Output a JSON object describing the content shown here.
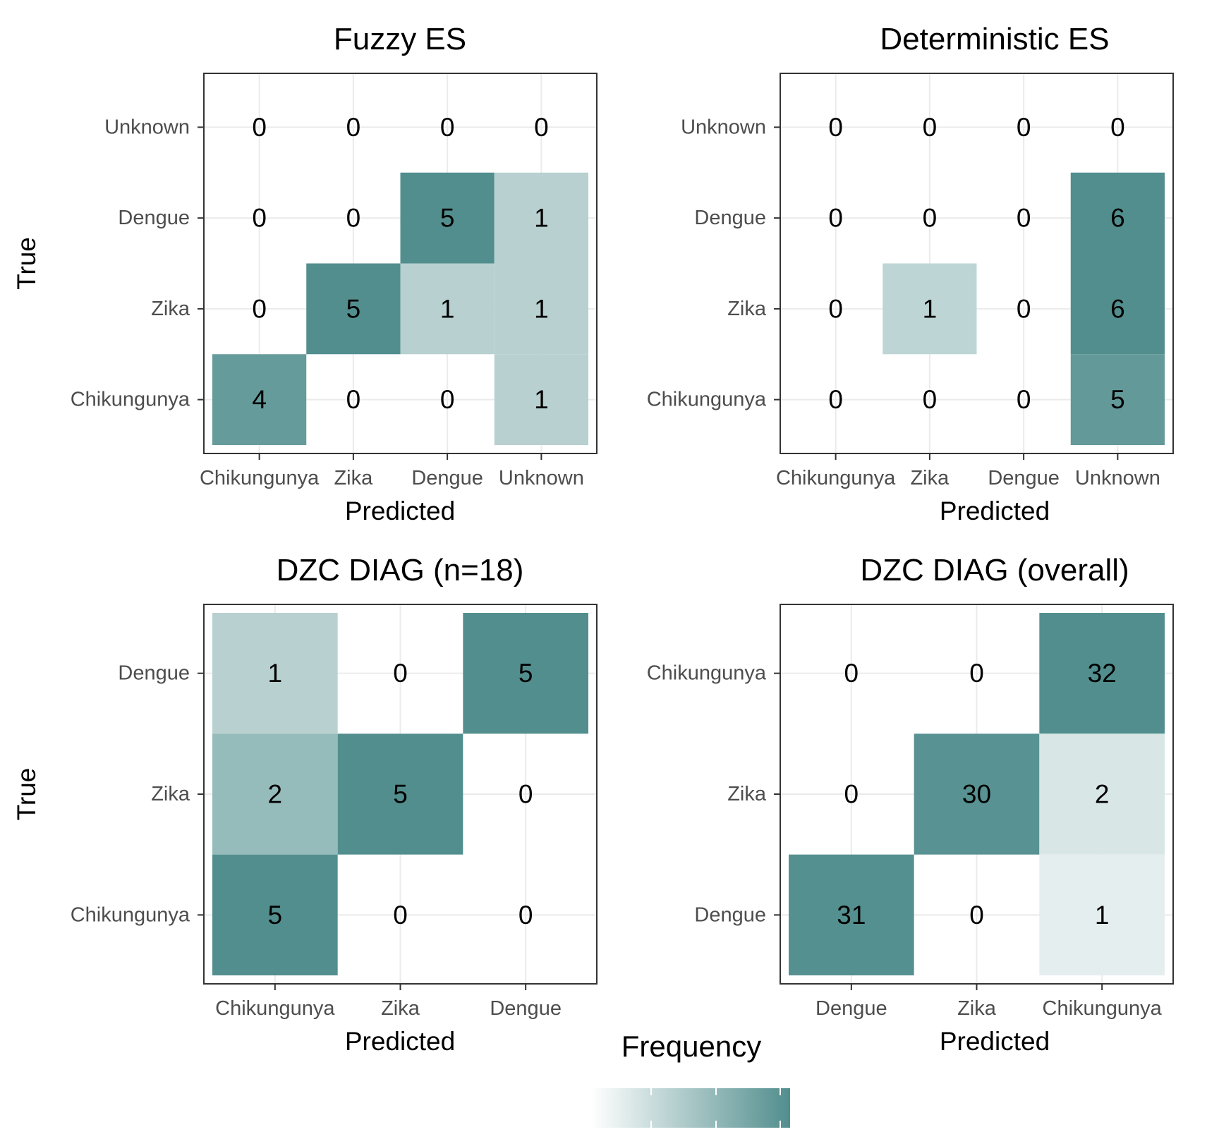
{
  "colors": {
    "high": "#528e8e",
    "low": "#ffffff",
    "grid": "#ebebeb",
    "border": "#333333",
    "tick_text": "#4d4d4d"
  },
  "legend": {
    "title": "Frequency",
    "position": "bottom",
    "gradient": [
      "#ffffff",
      "#528e8e"
    ]
  },
  "chart_data": [
    {
      "type": "heatmap",
      "title": "Fuzzy ES",
      "xlabel": "Predicted",
      "ylabel": "True",
      "x_categories": [
        "Chikungunya",
        "Zika",
        "Dengue",
        "Unknown"
      ],
      "y_categories": [
        "Chikungunya",
        "Zika",
        "Dengue",
        "Unknown"
      ],
      "cells": [
        {
          "x": "Chikungunya",
          "y": "Unknown",
          "value": 0
        },
        {
          "x": "Zika",
          "y": "Unknown",
          "value": 0
        },
        {
          "x": "Dengue",
          "y": "Unknown",
          "value": 0
        },
        {
          "x": "Unknown",
          "y": "Unknown",
          "value": 0
        },
        {
          "x": "Chikungunya",
          "y": "Dengue",
          "value": 0
        },
        {
          "x": "Zika",
          "y": "Dengue",
          "value": 0
        },
        {
          "x": "Dengue",
          "y": "Dengue",
          "value": 5
        },
        {
          "x": "Unknown",
          "y": "Dengue",
          "value": 1
        },
        {
          "x": "Chikungunya",
          "y": "Zika",
          "value": 0
        },
        {
          "x": "Zika",
          "y": "Zika",
          "value": 5
        },
        {
          "x": "Dengue",
          "y": "Zika",
          "value": 1
        },
        {
          "x": "Unknown",
          "y": "Zika",
          "value": 1
        },
        {
          "x": "Chikungunya",
          "y": "Chikungunya",
          "value": 4
        },
        {
          "x": "Zika",
          "y": "Chikungunya",
          "value": 0
        },
        {
          "x": "Dengue",
          "y": "Chikungunya",
          "value": 0
        },
        {
          "x": "Unknown",
          "y": "Chikungunya",
          "value": 1
        }
      ],
      "grid": true
    },
    {
      "type": "heatmap",
      "title": "Deterministic ES",
      "xlabel": "Predicted",
      "ylabel": "",
      "x_categories": [
        "Chikungunya",
        "Zika",
        "Dengue",
        "Unknown"
      ],
      "y_categories": [
        "Chikungunya",
        "Zika",
        "Dengue",
        "Unknown"
      ],
      "cells": [
        {
          "x": "Chikungunya",
          "y": "Unknown",
          "value": 0
        },
        {
          "x": "Zika",
          "y": "Unknown",
          "value": 0
        },
        {
          "x": "Dengue",
          "y": "Unknown",
          "value": 0
        },
        {
          "x": "Unknown",
          "y": "Unknown",
          "value": 0
        },
        {
          "x": "Chikungunya",
          "y": "Dengue",
          "value": 0
        },
        {
          "x": "Zika",
          "y": "Dengue",
          "value": 0
        },
        {
          "x": "Dengue",
          "y": "Dengue",
          "value": 0
        },
        {
          "x": "Unknown",
          "y": "Dengue",
          "value": 6
        },
        {
          "x": "Chikungunya",
          "y": "Zika",
          "value": 0
        },
        {
          "x": "Zika",
          "y": "Zika",
          "value": 1
        },
        {
          "x": "Dengue",
          "y": "Zika",
          "value": 0
        },
        {
          "x": "Unknown",
          "y": "Zika",
          "value": 6
        },
        {
          "x": "Chikungunya",
          "y": "Chikungunya",
          "value": 0
        },
        {
          "x": "Zika",
          "y": "Chikungunya",
          "value": 0
        },
        {
          "x": "Dengue",
          "y": "Chikungunya",
          "value": 0
        },
        {
          "x": "Unknown",
          "y": "Chikungunya",
          "value": 5
        }
      ],
      "grid": true
    },
    {
      "type": "heatmap",
      "title": "DZC DIAG (n=18)",
      "xlabel": "Predicted",
      "ylabel": "True",
      "x_categories": [
        "Chikungunya",
        "Zika",
        "Dengue"
      ],
      "y_categories": [
        "Chikungunya",
        "Zika",
        "Dengue"
      ],
      "cells": [
        {
          "x": "Chikungunya",
          "y": "Dengue",
          "value": 1
        },
        {
          "x": "Zika",
          "y": "Dengue",
          "value": 0
        },
        {
          "x": "Dengue",
          "y": "Dengue",
          "value": 5
        },
        {
          "x": "Chikungunya",
          "y": "Zika",
          "value": 2
        },
        {
          "x": "Zika",
          "y": "Zika",
          "value": 5
        },
        {
          "x": "Dengue",
          "y": "Zika",
          "value": 0
        },
        {
          "x": "Chikungunya",
          "y": "Chikungunya",
          "value": 5
        },
        {
          "x": "Zika",
          "y": "Chikungunya",
          "value": 0
        },
        {
          "x": "Dengue",
          "y": "Chikungunya",
          "value": 0
        }
      ],
      "grid": true
    },
    {
      "type": "heatmap",
      "title": "DZC DIAG (overall)",
      "xlabel": "Predicted",
      "ylabel": "",
      "x_categories": [
        "Dengue",
        "Zika",
        "Chikungunya"
      ],
      "y_categories": [
        "Dengue",
        "Zika",
        "Chikungunya"
      ],
      "cells": [
        {
          "x": "Dengue",
          "y": "Chikungunya",
          "value": 0
        },
        {
          "x": "Zika",
          "y": "Chikungunya",
          "value": 0
        },
        {
          "x": "Chikungunya",
          "y": "Chikungunya",
          "value": 32
        },
        {
          "x": "Dengue",
          "y": "Zika",
          "value": 0
        },
        {
          "x": "Zika",
          "y": "Zika",
          "value": 30
        },
        {
          "x": "Chikungunya",
          "y": "Zika",
          "value": 2
        },
        {
          "x": "Dengue",
          "y": "Dengue",
          "value": 31
        },
        {
          "x": "Zika",
          "y": "Dengue",
          "value": 0
        },
        {
          "x": "Chikungunya",
          "y": "Dengue",
          "value": 1
        }
      ],
      "grid": true
    }
  ]
}
